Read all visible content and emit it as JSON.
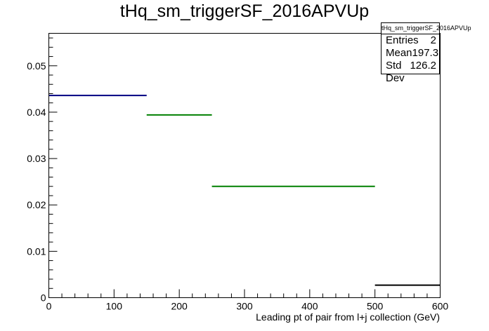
{
  "chart_data": {
    "type": "histogram",
    "title": "tHq_sm_triggerSF_2016APVUp",
    "xlabel": "Leading pt of pair from l+j collection (GeV)",
    "ylabel": "",
    "xlim": [
      0,
      600
    ],
    "ylim": [
      0,
      0.057
    ],
    "x_ticks": [
      "0",
      "100",
      "200",
      "300",
      "400",
      "500",
      "600"
    ],
    "y_ticks": [
      "0",
      "0.01",
      "0.02",
      "0.03",
      "0.04",
      "0.05"
    ],
    "x_tick_values": [
      0,
      100,
      200,
      300,
      400,
      500,
      600
    ],
    "y_tick_values": [
      0,
      0.01,
      0.02,
      0.03,
      0.04,
      0.05
    ],
    "bins": [
      {
        "x0": 0,
        "x1": 150,
        "y": 0.0436,
        "color": "#000080"
      },
      {
        "x0": 150,
        "x1": 250,
        "y": 0.0394,
        "color": "#008000"
      },
      {
        "x0": 250,
        "x1": 500,
        "y": 0.024,
        "color": "#008000"
      },
      {
        "x0": 500,
        "x1": 600,
        "y": 0.0027,
        "color": "#000000"
      }
    ]
  },
  "stats": {
    "name": "tHq_sm_triggerSF_2016APVUp",
    "rows": [
      {
        "label": "Entries",
        "value": "2"
      },
      {
        "label": "Mean",
        "value": "197.3"
      },
      {
        "label": "Std Dev",
        "value": "126.2"
      }
    ]
  }
}
